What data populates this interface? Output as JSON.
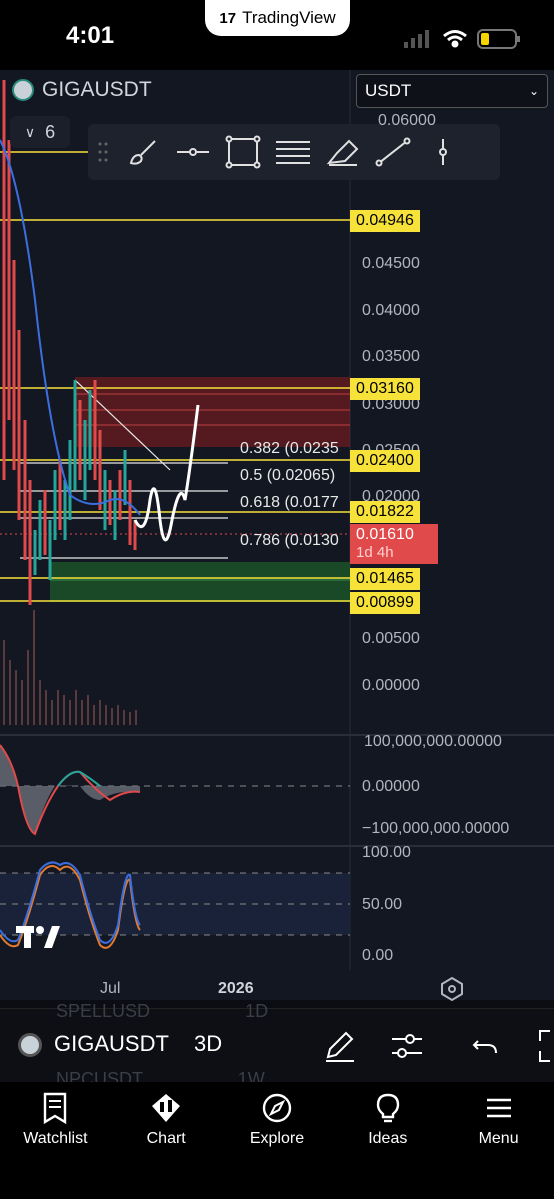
{
  "status_bar": {
    "time": "4:01",
    "app_name": "TradingView"
  },
  "chart": {
    "symbol": "GIGAUSDT",
    "indicator_count": "6",
    "currency": "USDT",
    "price_axis": [
      "0.06000",
      "0.04500",
      "0.04000",
      "0.03500",
      "0.03000",
      "0.02500",
      "0.02000",
      "0.00500",
      "0.00000"
    ],
    "levels": {
      "l1": "0.04946",
      "l2": "0.03160",
      "l3": "0.02400",
      "l4": "0.01822",
      "current": "0.01610",
      "countdown": "1d 4h",
      "l5": "0.01465",
      "l6": "0.00899"
    },
    "fib": {
      "f382": "0.382 (0.0235",
      "f5": "0.5 (0.02065)",
      "f618": "0.618 (0.0177",
      "f786": "0.786 (0.0130"
    },
    "macd_axis": [
      "100,000,000.00000",
      "0.00000",
      "−100,000,000.00000"
    ],
    "rsi_axis": [
      "100.00",
      "50.00",
      "0.00"
    ],
    "date_axis": [
      "Jul",
      "2026"
    ]
  },
  "symbol_bar": {
    "symbol": "GIGAUSDT",
    "interval": "3D",
    "bg_text_1": "SPELLUSD",
    "bg_text_1_interval": "1D",
    "bg_text_2": "NPCUSDT",
    "bg_text_2_interval": "1W"
  },
  "nav": {
    "watchlist": "Watchlist",
    "chart": "Chart",
    "explore": "Explore",
    "ideas": "Ideas",
    "menu": "Menu"
  },
  "colors": {
    "level_yellow": "#f7e23a",
    "current_red": "#e04a4a",
    "zone_red": "#8b1e1e",
    "zone_green": "#1e5f2a"
  }
}
